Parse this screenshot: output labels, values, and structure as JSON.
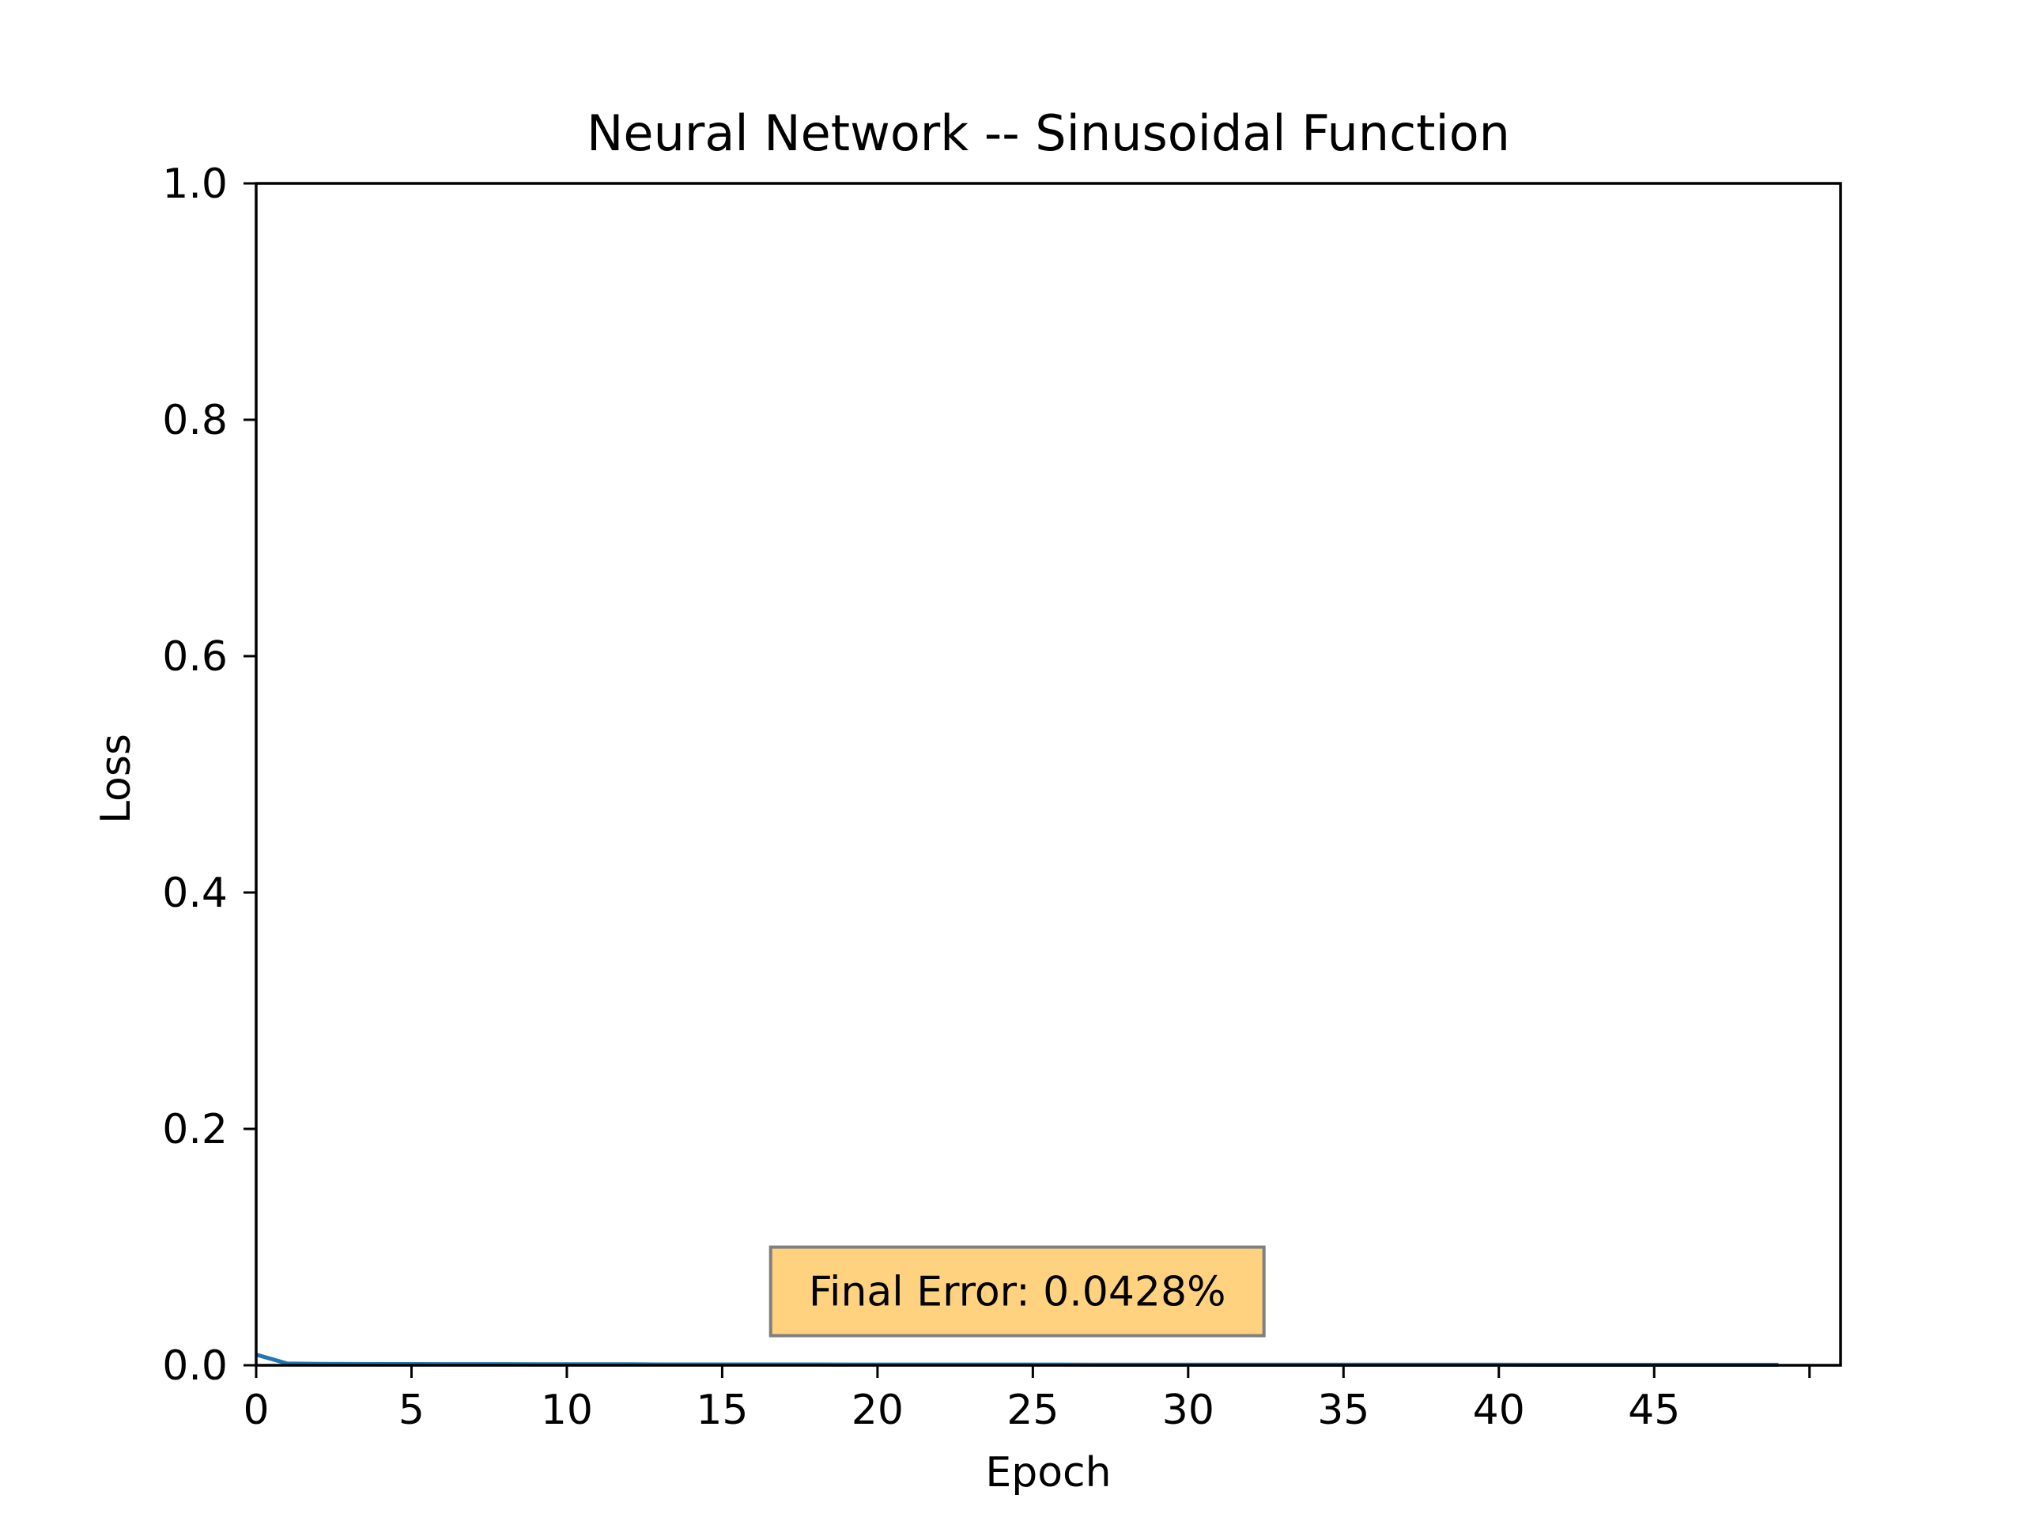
{
  "chart_data": {
    "type": "line",
    "title": "Neural Network -- Sinusoidal Function",
    "xlabel": "Epoch",
    "ylabel": "Loss",
    "xlim": [
      0,
      51
    ],
    "ylim": [
      0,
      1.0
    ],
    "x_ticks": [
      0,
      5,
      10,
      15,
      20,
      25,
      30,
      35,
      40,
      45,
      50
    ],
    "x_tick_labels": [
      "0",
      "5",
      "10",
      "15",
      "20",
      "25",
      "30",
      "35",
      "40",
      "45",
      ""
    ],
    "y_ticks": [
      0.0,
      0.2,
      0.4,
      0.6,
      0.8,
      1.0
    ],
    "y_tick_labels": [
      "0.0",
      "0.2",
      "0.4",
      "0.6",
      "0.8",
      "1.0"
    ],
    "grid": false,
    "series": [
      {
        "color": "#1f77b4",
        "x": [
          0,
          1,
          2,
          3,
          4,
          5,
          6,
          7,
          8,
          9,
          10,
          11,
          12,
          13,
          14,
          15,
          16,
          17,
          18,
          19,
          20,
          21,
          22,
          23,
          24,
          25,
          26,
          27,
          28,
          29,
          30,
          31,
          32,
          33,
          34,
          35,
          36,
          37,
          38,
          39,
          40,
          41,
          42,
          43,
          44,
          45,
          46,
          47,
          48,
          49
        ],
        "y": [
          0.009,
          0.0015,
          0.0012,
          0.0011,
          0.001,
          0.001,
          0.0009,
          0.0009,
          0.0009,
          0.0008,
          0.0008,
          0.0008,
          0.0008,
          0.0007,
          0.0007,
          0.0007,
          0.0007,
          0.0007,
          0.0007,
          0.0006,
          0.0006,
          0.0006,
          0.0006,
          0.0006,
          0.0006,
          0.0006,
          0.0006,
          0.0005,
          0.0005,
          0.0005,
          0.0005,
          0.0005,
          0.0005,
          0.0005,
          0.0005,
          0.0005,
          0.0005,
          0.0005,
          0.0005,
          0.0005,
          0.0005,
          0.0004,
          0.0004,
          0.0004,
          0.0004,
          0.0004,
          0.0004,
          0.0004,
          0.0004,
          0.0004
        ]
      }
    ],
    "annotation": {
      "text": "Final Error: 0.0428%",
      "x": 24.5,
      "y": 0.0625,
      "background": "#ffd27f",
      "border": "#7f7f7f"
    }
  }
}
